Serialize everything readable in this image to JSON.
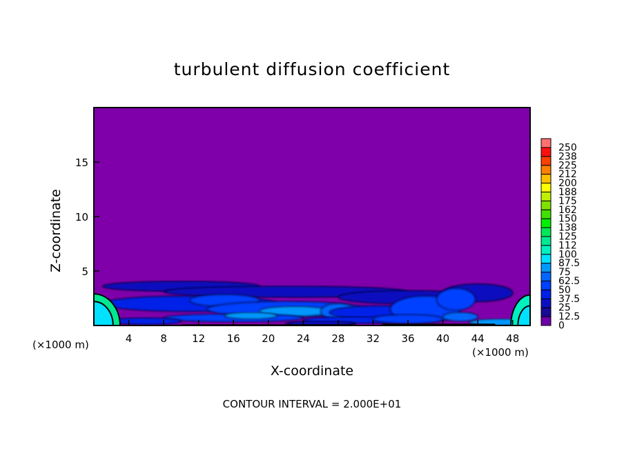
{
  "chart_data": {
    "type": "contour",
    "title": "turbulent diffusion coefficient",
    "xlabel": "X-coordinate",
    "ylabel": "Z-coordinate",
    "x_unit_label": "(×1000 m)",
    "xlim": [
      0,
      50
    ],
    "ylim": [
      0,
      20
    ],
    "x_ticks": [
      4,
      8,
      12,
      16,
      20,
      24,
      28,
      32,
      36,
      40,
      44,
      48
    ],
    "y_ticks": [
      5,
      10,
      15
    ],
    "footer": "CONTOUR INTERVAL = 2.000E+01",
    "colorbar": {
      "labels": [
        "0",
        "12.5",
        "25",
        "37.5",
        "50",
        "62.5",
        "75",
        "87.5",
        "100",
        "112",
        "125",
        "138",
        "150",
        "162",
        "175",
        "188",
        "200",
        "212",
        "225",
        "238",
        "250"
      ],
      "colors": [
        "#7000a8",
        "#1a0a98",
        "#0a10c0",
        "#0020e8",
        "#0040ff",
        "#0066ff",
        "#0098ff",
        "#00e0ff",
        "#00f0c0",
        "#00e890",
        "#00e858",
        "#00f000",
        "#40e000",
        "#80e000",
        "#c0f000",
        "#ffff00",
        "#ffc000",
        "#ff8000",
        "#ff4000",
        "#ff1010",
        "#ff7070"
      ]
    },
    "background_value": 0,
    "description_of_field": "near-zero above z=4; values up to ~100 in turbulent layer below z≈4"
  }
}
